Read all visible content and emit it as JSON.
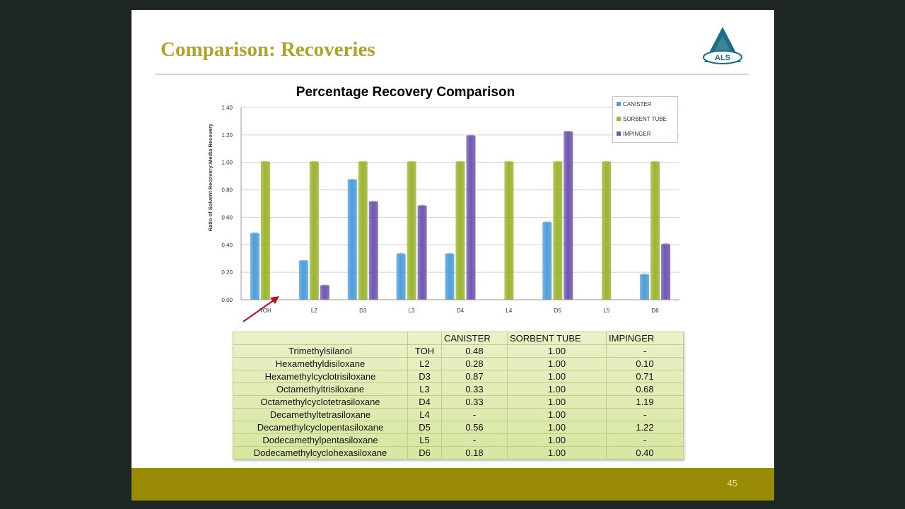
{
  "slide": {
    "title": "Comparison: Recoveries",
    "logo_text": "ALS",
    "page_number": "45"
  },
  "colors": {
    "title": "#b0a22a",
    "footer": "#9a8b06",
    "canister": "#4f9ed9",
    "sorbent_tube": "#9cb531",
    "impinger": "#7057b0"
  },
  "chart_data": {
    "type": "bar",
    "title": "Percentage Recovery Comparison",
    "ylabel": "Ratio of Solvent Recovery:Media Recovery",
    "xlabel": "",
    "categories": [
      "TOH",
      "L2",
      "D3",
      "L3",
      "D4",
      "L4",
      "D5",
      "L5",
      "D6"
    ],
    "series": [
      {
        "name": "CANISTER",
        "values": [
          0.48,
          0.28,
          0.87,
          0.33,
          0.33,
          null,
          0.56,
          null,
          0.18
        ]
      },
      {
        "name": "SORBENT TUBE",
        "values": [
          1.0,
          1.0,
          1.0,
          1.0,
          1.0,
          1.0,
          1.0,
          1.0,
          1.0
        ]
      },
      {
        "name": "IMPINGER",
        "values": [
          null,
          0.1,
          0.71,
          0.68,
          1.19,
          null,
          1.22,
          null,
          0.4
        ]
      }
    ],
    "ylim": [
      0,
      1.4
    ],
    "yticks": [
      "0.00",
      "0.20",
      "0.40",
      "0.60",
      "0.80",
      "1.00",
      "1.20",
      "1.40"
    ],
    "grid": true,
    "legend": "top-right"
  },
  "table": {
    "headers": [
      "",
      "",
      "CANISTER",
      "SORBENT TUBE",
      "IMPINGER"
    ],
    "rows": [
      [
        "Trimethylsilanol",
        "TOH",
        "0.48",
        "1.00",
        "-"
      ],
      [
        "Hexamethyldisiloxane",
        "L2",
        "0.28",
        "1.00",
        "0.10"
      ],
      [
        "Hexamethylcyclotrisiloxane",
        "D3",
        "0.87",
        "1.00",
        "0.71"
      ],
      [
        "Octamethyltrisiloxane",
        "L3",
        "0.33",
        "1.00",
        "0.68"
      ],
      [
        "Octamethylcyclotetrasiloxane",
        "D4",
        "0.33",
        "1.00",
        "1.19"
      ],
      [
        "Decamethyltetrasiloxane",
        "L4",
        "-",
        "1.00",
        "-"
      ],
      [
        "Decamethylcyclopentasiloxane",
        "D5",
        "0.56",
        "1.00",
        "1.22"
      ],
      [
        "Dodecamethylpentasiloxane",
        "L5",
        "-",
        "1.00",
        "-"
      ],
      [
        "Dodecamethylcyclohexasiloxane",
        "D6",
        "0.18",
        "1.00",
        "0.40"
      ]
    ]
  }
}
